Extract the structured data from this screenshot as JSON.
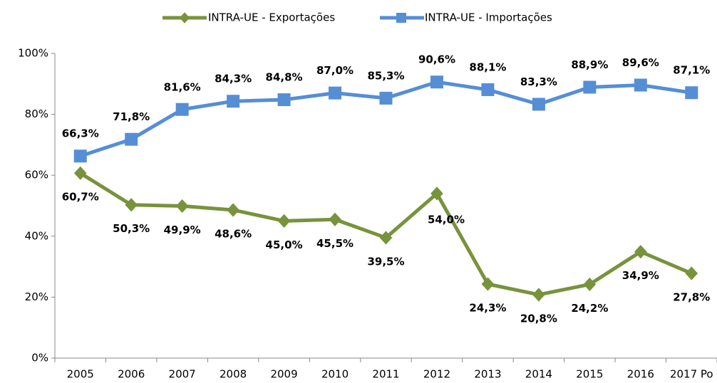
{
  "chart_data": {
    "type": "line",
    "categories": [
      "2005",
      "2006",
      "2007",
      "2008",
      "2009",
      "2010",
      "2011",
      "2012",
      "2013",
      "2014",
      "2015",
      "2016",
      "2017 Po"
    ],
    "series": [
      {
        "name": "INTRA-UE - Exportações",
        "color": "#77933c",
        "marker": "diamond",
        "values": [
          60.7,
          50.3,
          49.9,
          48.6,
          45.0,
          45.5,
          39.5,
          54.0,
          24.3,
          20.8,
          24.2,
          34.9,
          27.8
        ],
        "value_labels": [
          "60,7%",
          "50,3%",
          "49,9%",
          "48,6%",
          "45,0%",
          "45,5%",
          "39,5%",
          "54,0%",
          "24,3%",
          "20,8%",
          "24,2%",
          "34,9%",
          "27,8%"
        ]
      },
      {
        "name": "INTRA-UE - Importações",
        "color": "#558ed5",
        "marker": "square",
        "values": [
          66.3,
          71.8,
          81.6,
          84.3,
          84.8,
          87.0,
          85.3,
          90.6,
          88.1,
          83.3,
          88.9,
          89.6,
          87.1
        ],
        "value_labels": [
          "66,3%",
          "71,8%",
          "81,6%",
          "84,3%",
          "84,8%",
          "87,0%",
          "85,3%",
          "90,6%",
          "88,1%",
          "83,3%",
          "88,9%",
          "89,6%",
          "87,1%"
        ]
      }
    ],
    "ylim": [
      0,
      100
    ],
    "yticks": [
      {
        "value": 0,
        "label": "0%"
      },
      {
        "value": 20,
        "label": "20%"
      },
      {
        "value": 40,
        "label": "40%"
      },
      {
        "value": 60,
        "label": "60%"
      },
      {
        "value": 80,
        "label": "80%"
      },
      {
        "value": 100,
        "label": "100%"
      }
    ],
    "legend": "top"
  }
}
